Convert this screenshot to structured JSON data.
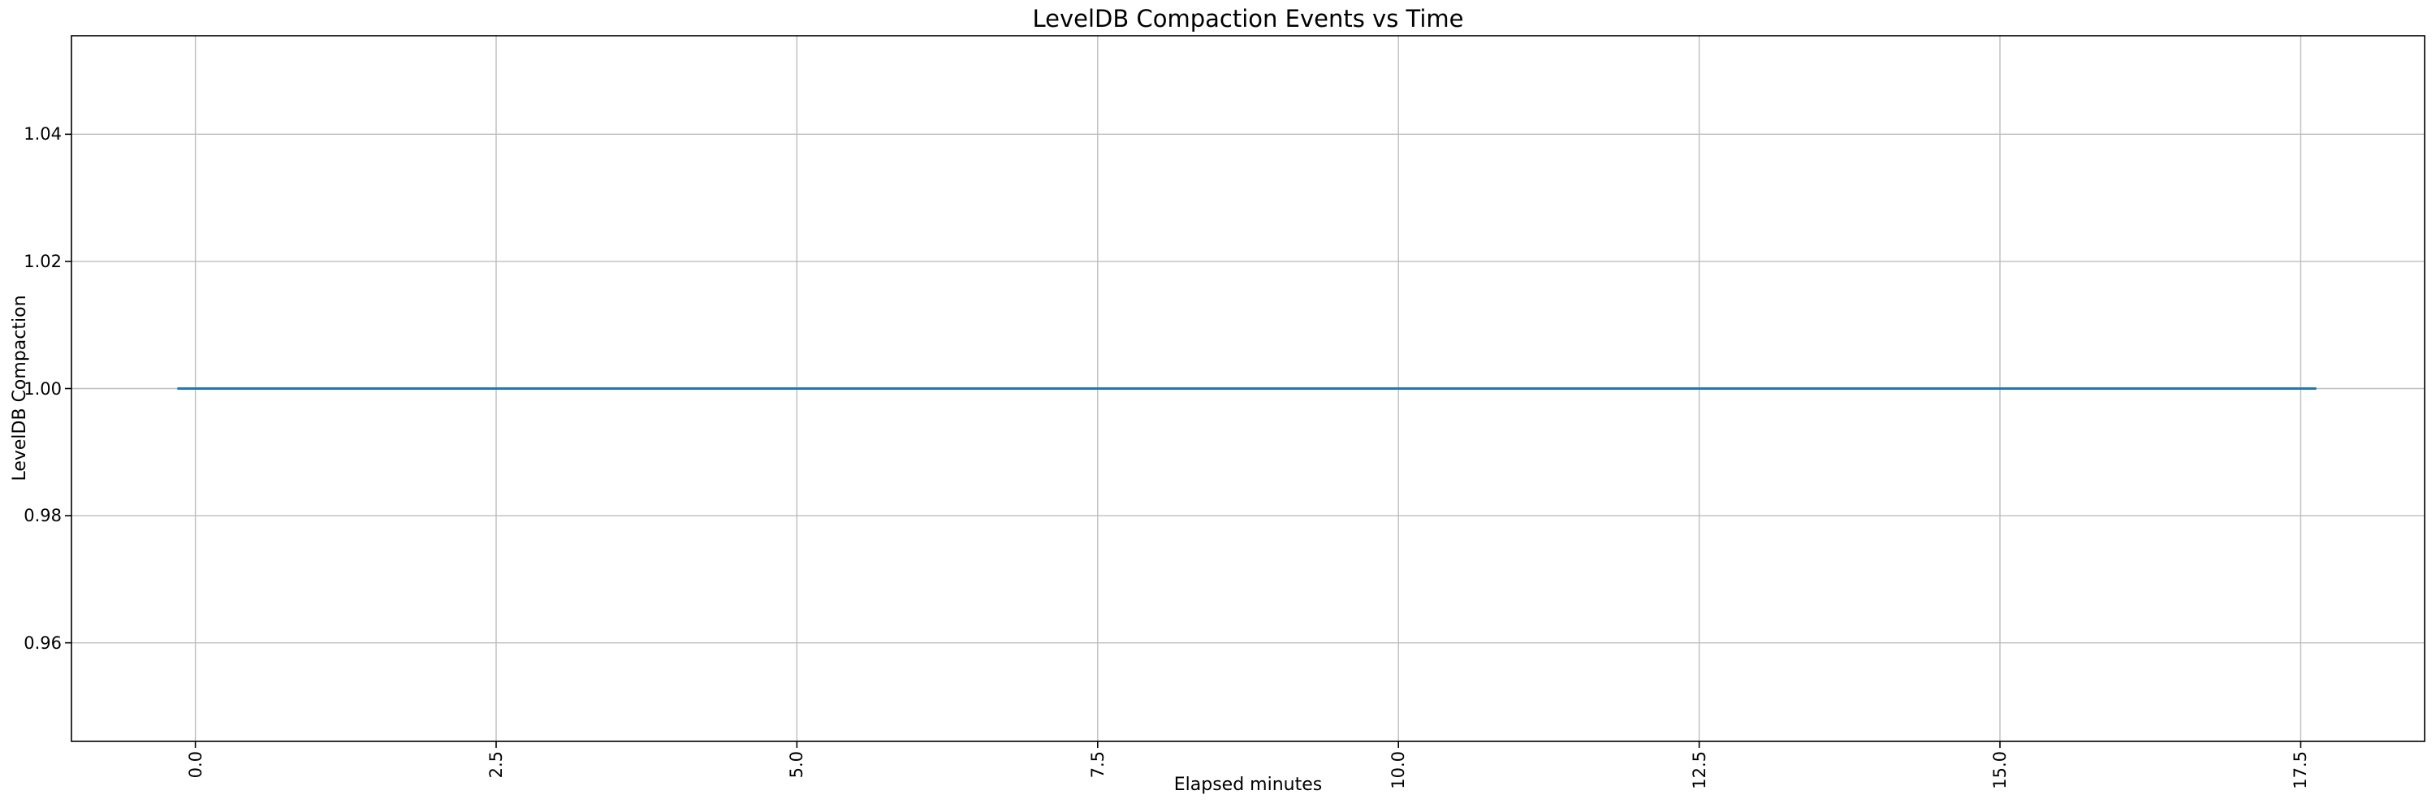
{
  "figure": {
    "background": "#ffffff"
  },
  "chart_data": {
    "type": "line",
    "title": "LevelDB Compaction Events vs Time",
    "xlabel": "Elapsed minutes",
    "ylabel": "LevelDB Compaction",
    "xlim": [
      -1.03,
      18.53
    ],
    "ylim": [
      0.9445,
      1.0555
    ],
    "x_ticks": {
      "values": [
        0.0,
        2.5,
        5.0,
        7.5,
        10.0,
        12.5,
        15.0,
        17.5
      ],
      "labels": [
        "0.0",
        "2.5",
        "5.0",
        "7.5",
        "10.0",
        "12.5",
        "15.0",
        "17.5"
      ],
      "rotation_deg": 90
    },
    "y_ticks": {
      "values": [
        0.96,
        0.98,
        1.0,
        1.02,
        1.04
      ],
      "labels": [
        "0.96",
        "0.98",
        "1.00",
        "1.02",
        "1.04"
      ]
    },
    "grid": true,
    "legend": false,
    "series": [
      {
        "name": "LevelDB Compaction",
        "color": "#1f77b4",
        "line_width": 3,
        "x": [
          -0.15,
          17.63
        ],
        "y": [
          1.0,
          1.0
        ]
      }
    ],
    "colors": {
      "grid": "#bdbdbd",
      "spine": "#000000",
      "tick": "#000000",
      "text": "#000000"
    }
  }
}
